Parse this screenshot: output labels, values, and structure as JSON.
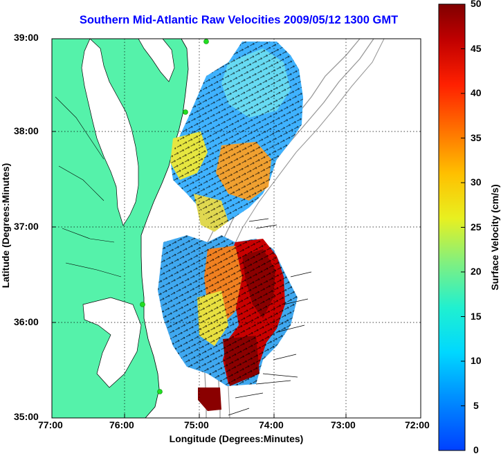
{
  "title": "Southern Mid-Atlantic Raw Velocities 2009/05/12 1300 GMT",
  "colorbar": {
    "label": "Surface Velocity (cm/s)",
    "ticks": [
      "50",
      "45",
      "40",
      "35",
      "30",
      "25",
      "20",
      "15",
      "10",
      "5",
      "0"
    ]
  },
  "chart_data": {
    "type": "heatmap",
    "title": "Southern Mid-Atlantic Raw Velocities 2009/05/12 1300 GMT",
    "xlabel": "Longitude (Degrees:Minutes)",
    "ylabel": "Latitude (Degrees:Minutes)",
    "xlim": [
      -77,
      -72
    ],
    "ylim": [
      35,
      39
    ],
    "x_ticks": [
      "77:00",
      "76:00",
      "75:00",
      "74:00",
      "73:00",
      "72:00"
    ],
    "y_ticks": [
      "39:00",
      "38:00",
      "37:00",
      "36:00",
      "35:00"
    ],
    "grid": true,
    "colorbar_range": [
      0,
      50
    ],
    "colorbar_unit": "cm/s",
    "colors": {
      "land": "#55f2aa",
      "title": "#0000ff",
      "bathymetry": "#999999",
      "stations": "#22dd22"
    }
  }
}
